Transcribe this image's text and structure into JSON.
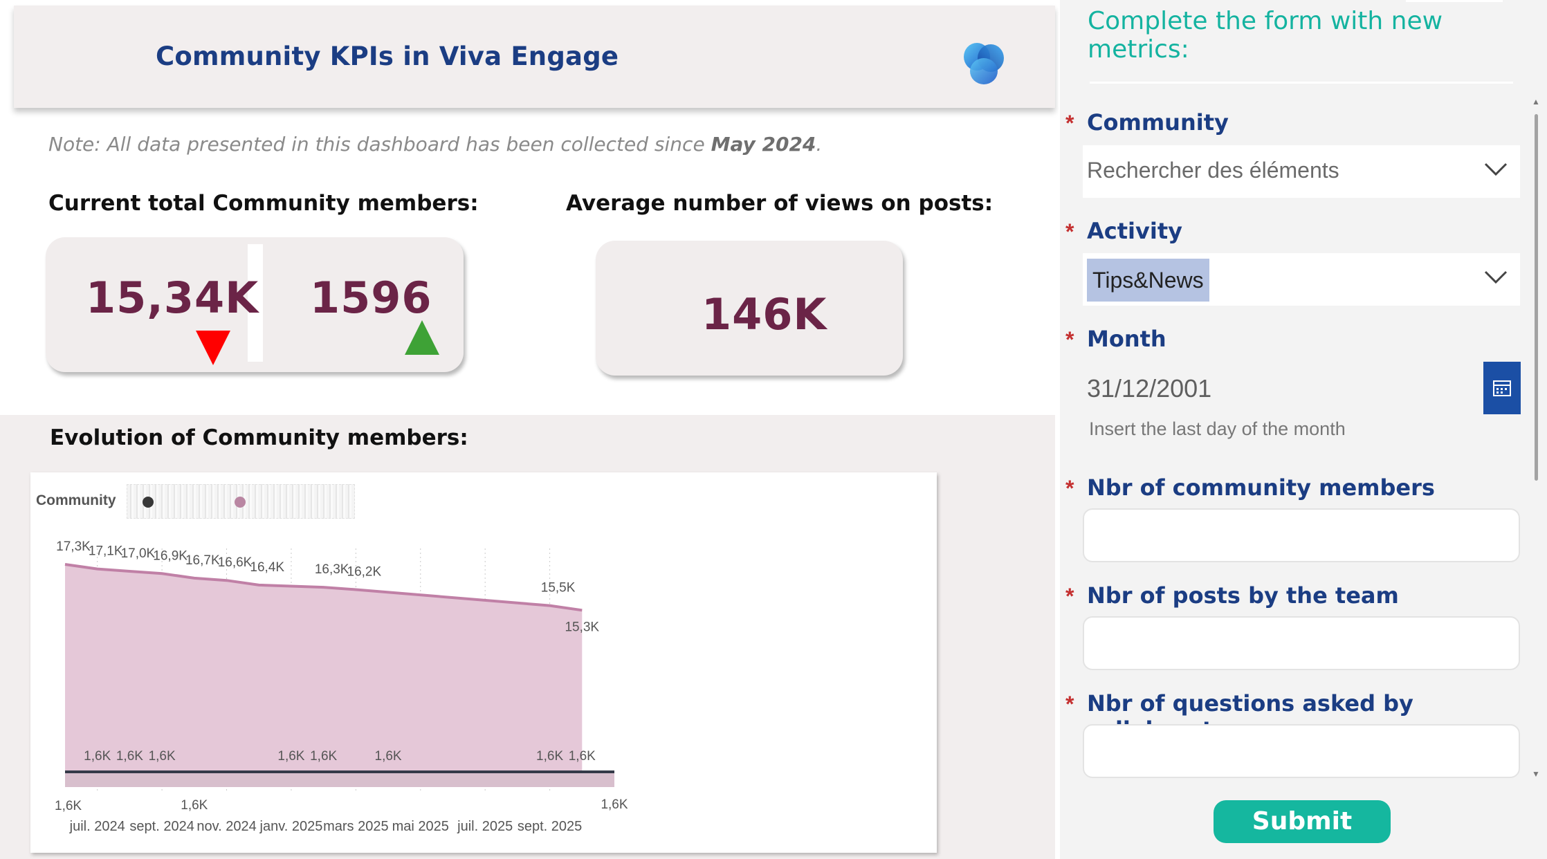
{
  "dashboard": {
    "title": "Community KPIs in Viva Engage",
    "note_prefix": "Note: All data presented in this dashboard has been collected since ",
    "note_date": "May 2024",
    "note_suffix": ".",
    "members_heading": "Current total Community members:",
    "members_total": "15,34K",
    "members_total_trend": "down",
    "members_new": "1596",
    "members_new_trend": "up",
    "views_heading": "Average number of views on posts:",
    "views_value": "146K",
    "evolution_heading": "Evolution of Community members:",
    "legend_label": "Community",
    "colors": {
      "accent_title": "#1b3d83",
      "kpi_value": "#6b2447",
      "down": "#ff0000",
      "up": "#3ea236",
      "area": "#e5c8d8",
      "line_top": "#c080a6",
      "line_bottom": "#343a48"
    }
  },
  "chart_data": {
    "type": "area",
    "x_tick_labels": [
      "juil. 2024",
      "sept. 2024",
      "nov. 2024",
      "janv. 2025",
      "mars 2025",
      "mai 2025",
      "juil. 2025",
      "sept. 2025"
    ],
    "series": [
      {
        "points": [
          {
            "x": "2024-06",
            "y": 17.3,
            "label": "17,3K"
          },
          {
            "x": "2024-07",
            "y": 17.1,
            "label": "17,1K"
          },
          {
            "x": "2024-08",
            "y": 17.0,
            "label": "17,0K"
          },
          {
            "x": "2024-09",
            "y": 16.9,
            "label": "16,9K"
          },
          {
            "x": "2024-10",
            "y": 16.7,
            "label": "16,7K"
          },
          {
            "x": "2024-11",
            "y": 16.6,
            "label": "16,6K"
          },
          {
            "x": "2024-12",
            "y": 16.4,
            "label": "16,4K"
          },
          {
            "x": "2025-02",
            "y": 16.3,
            "label": "16,3K"
          },
          {
            "x": "2025-03",
            "y": 16.2,
            "label": "16,2K"
          },
          {
            "x": "2025-09",
            "y": 15.5,
            "label": "15,5K"
          },
          {
            "x": "2025-10",
            "y": 15.3,
            "label": "15,3K"
          }
        ]
      },
      {
        "points": [
          {
            "x": "2024-06",
            "y": 1.6,
            "label": "1,6K"
          },
          {
            "x": "2024-07",
            "y": 1.6,
            "label": "1,6K"
          },
          {
            "x": "2024-08",
            "y": 1.6,
            "label": "1,6K"
          },
          {
            "x": "2024-09",
            "y": 1.6,
            "label": "1,6K"
          },
          {
            "x": "2024-10",
            "y": 1.6,
            "label": "1,6K"
          },
          {
            "x": "2025-01",
            "y": 1.6,
            "label": "1,6K"
          },
          {
            "x": "2025-02",
            "y": 1.6,
            "label": "1,6K"
          },
          {
            "x": "2025-04",
            "y": 1.6,
            "label": "1,6K"
          },
          {
            "x": "2025-09",
            "y": 1.6,
            "label": "1,6K"
          },
          {
            "x": "2025-10",
            "y": 1.6,
            "label": "1,6K"
          },
          {
            "x": "2025-11",
            "y": 1.6,
            "label": "1,6K"
          }
        ]
      }
    ],
    "y_unit": "K",
    "grid": "vertical dotted",
    "legend": "top-left"
  },
  "form": {
    "title": "Complete the form with new metrics:",
    "required_mark": "*",
    "community_label": "Community",
    "community_placeholder": "Rechercher des éléments",
    "activity_label": "Activity",
    "activity_value": "Tips&News",
    "month_label": "Month",
    "month_value": "31/12/2001",
    "month_hint": "Insert the last day of the month",
    "members_label": "Nbr of community members",
    "posts_label": "Nbr of posts by the team",
    "questions_label": "Nbr of questions asked by collaborators",
    "submit_label": "Submit",
    "colors": {
      "title": "#14b3a0",
      "label": "#1b3d83",
      "submit": "#15b79f",
      "calendar": "#1b4fa5",
      "chip": "#b5c3e2"
    }
  }
}
